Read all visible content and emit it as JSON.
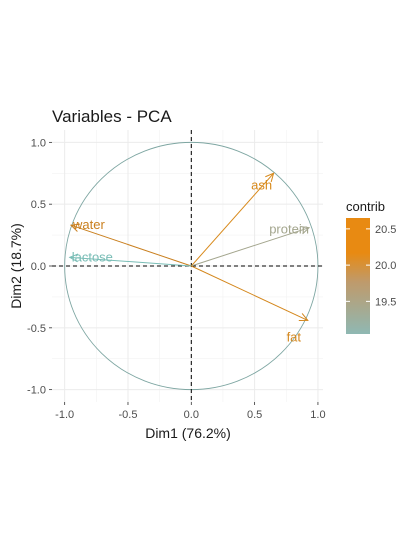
{
  "chart_data": {
    "type": "scatter",
    "title": "Variables - PCA",
    "xlabel": "Dim1 (76.2%)",
    "ylabel": "Dim2 (18.7%)",
    "xlim": [
      -1.1,
      1.04
    ],
    "ylim": [
      -1.1,
      1.1
    ],
    "x_ticks": [
      "-1.0",
      "-0.5",
      "0.0",
      "0.5",
      "1.0"
    ],
    "y_ticks": [
      "-1.0",
      "-0.5",
      "0.0",
      "0.5",
      "1.0"
    ],
    "grid": true,
    "correlation_circle": true,
    "legend": {
      "title": "contrib",
      "placement": "right",
      "ticks": [
        "20.5",
        "20.0",
        "19.5"
      ],
      "tick_values": [
        20.5,
        20.0,
        19.5
      ],
      "range": [
        19.05,
        20.65
      ],
      "gradient": [
        "#8fb8b3",
        "#bf9a6b",
        "#e88a12"
      ]
    },
    "series": [
      {
        "label": "ash",
        "x": 0.65,
        "y": 0.75,
        "contrib": 20.3,
        "color": "#d88a1c"
      },
      {
        "label": "protein",
        "x": 0.93,
        "y": 0.31,
        "contrib": 19.4,
        "color": "#a3a58d"
      },
      {
        "label": "water",
        "x": -0.95,
        "y": 0.33,
        "contrib": 20.6,
        "color": "#c97f1e"
      },
      {
        "label": "lactose",
        "x": -0.96,
        "y": 0.07,
        "contrib": 19.1,
        "color": "#79bdb6"
      },
      {
        "label": "fat",
        "x": 0.92,
        "y": -0.44,
        "contrib": 20.4,
        "color": "#d4871c"
      }
    ]
  }
}
